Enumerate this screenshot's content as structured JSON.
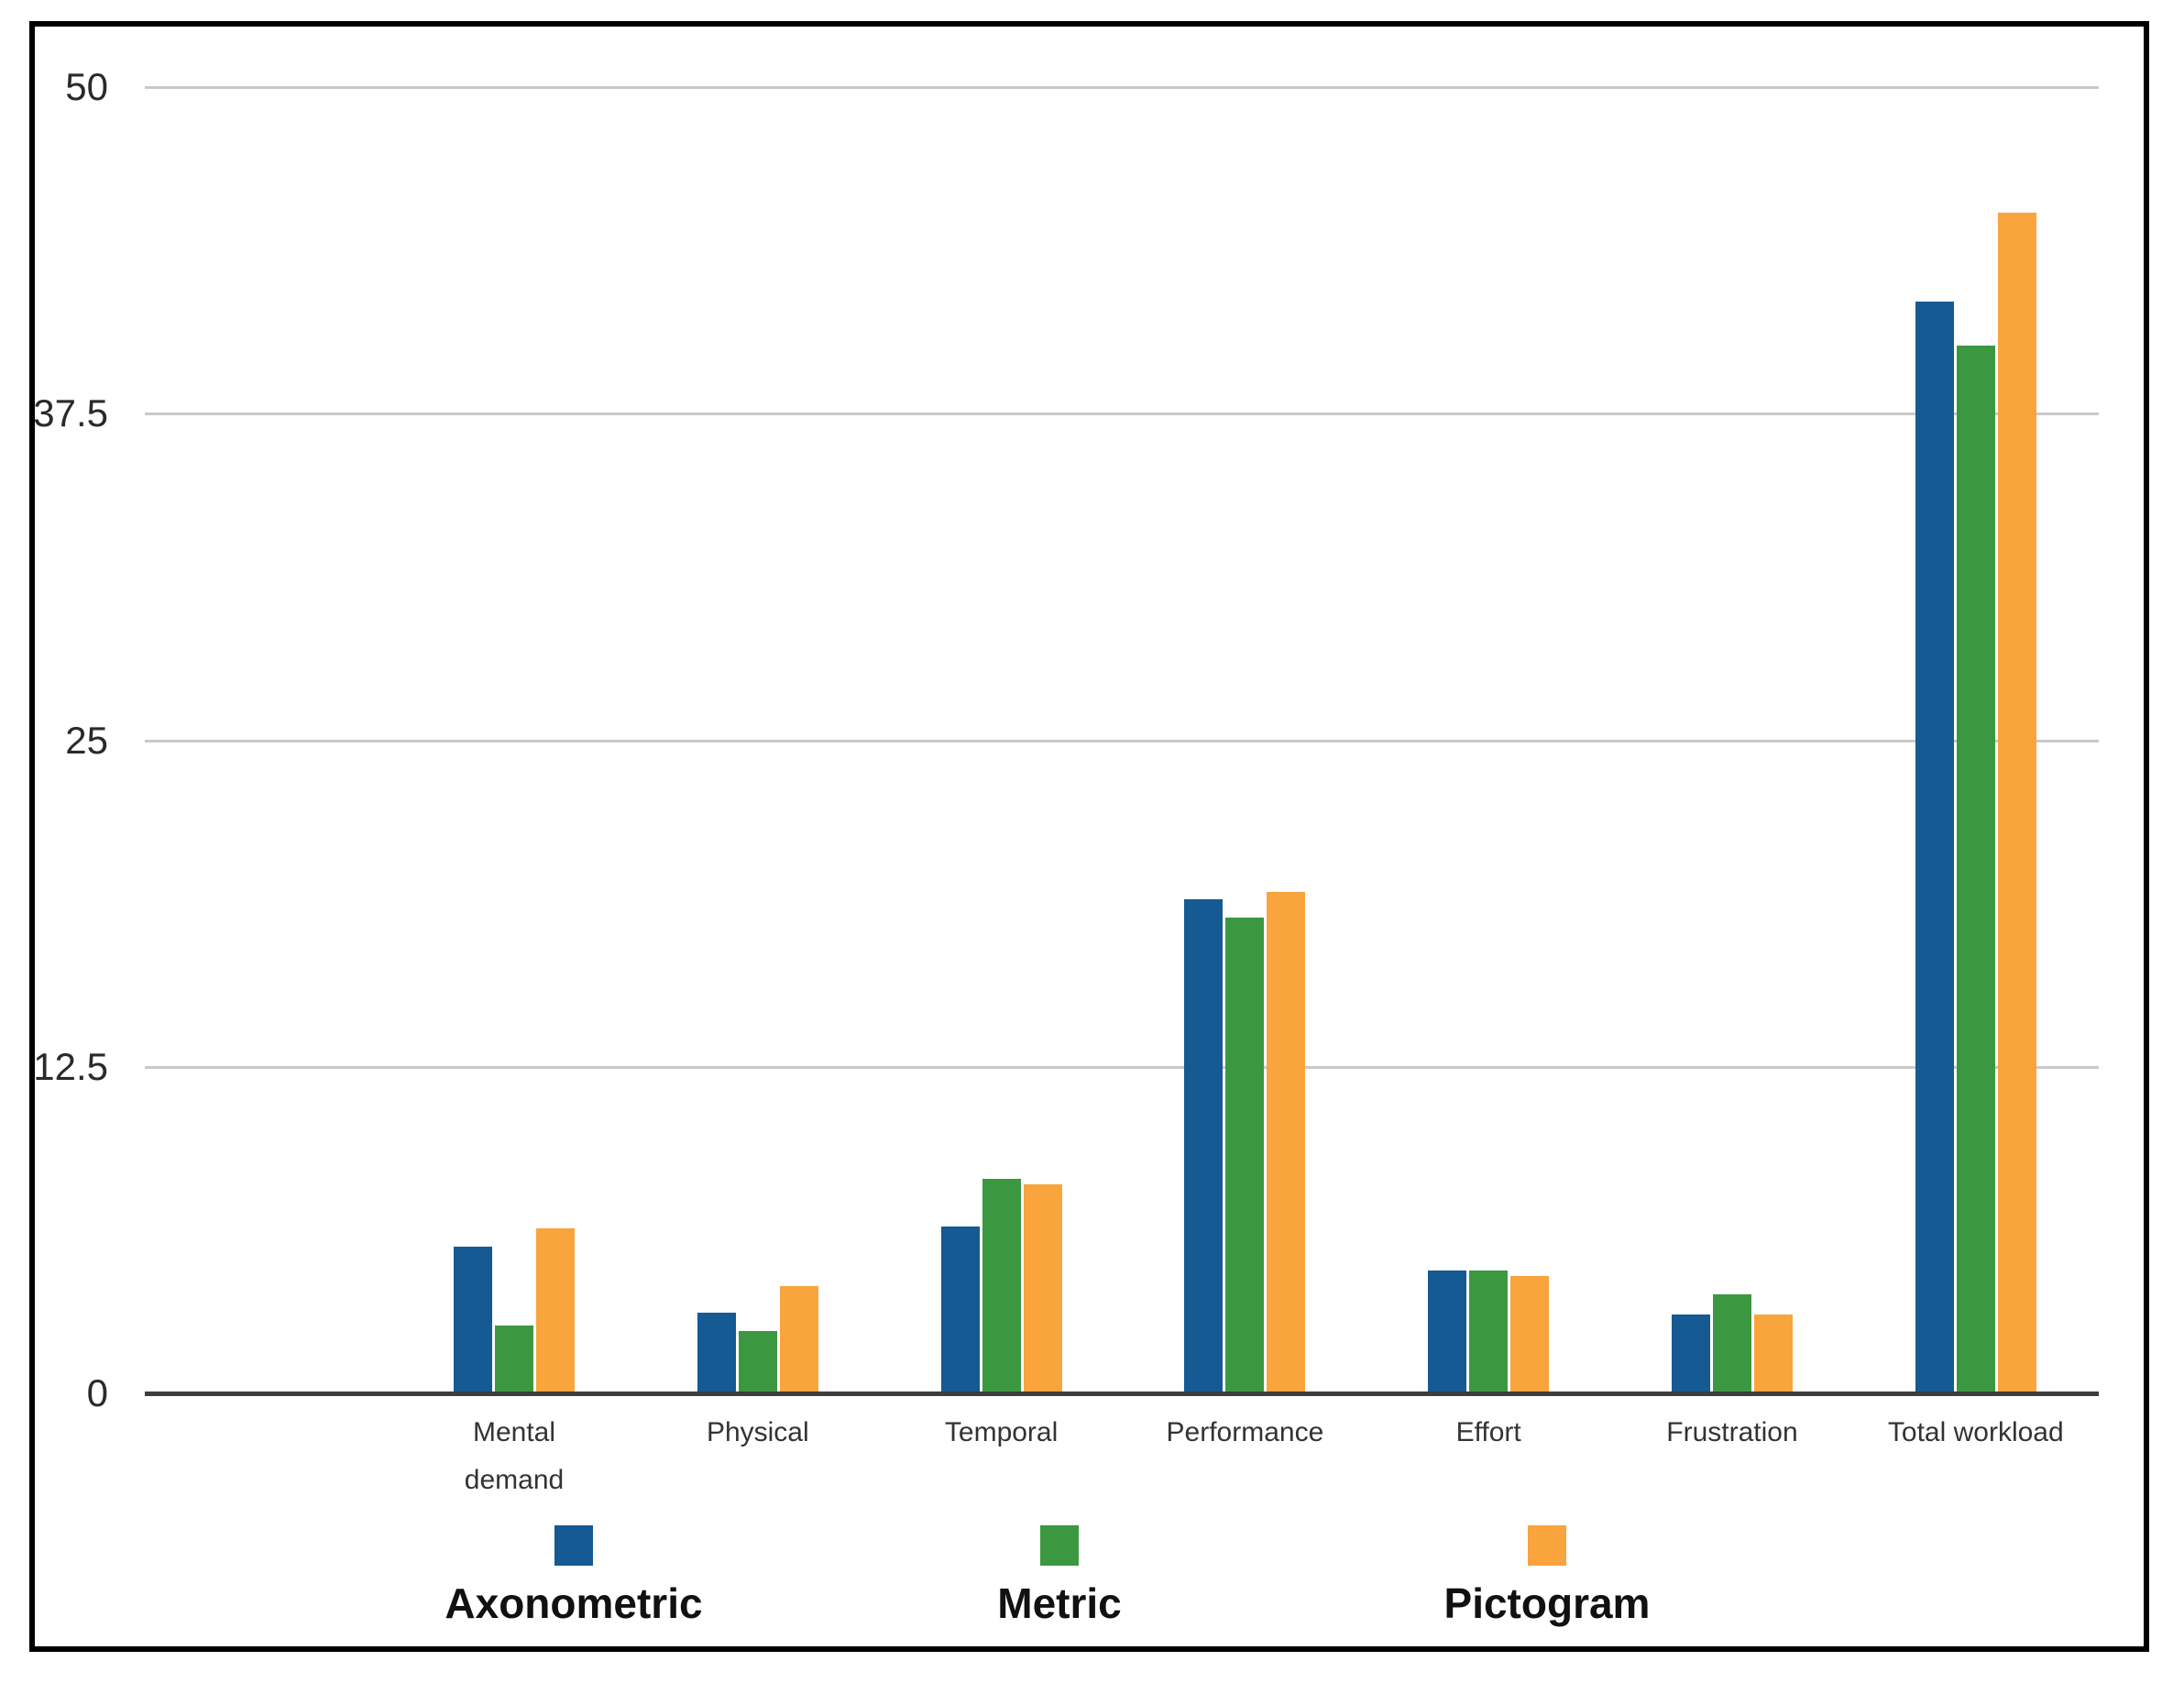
{
  "chart_data": {
    "type": "bar",
    "title": "",
    "categories": [
      "Mental demand",
      "Physical",
      "Temporal",
      "Performance",
      "Effort",
      "Frustration",
      "Total workload"
    ],
    "category_display": [
      "Mental\ndemand",
      "Physical",
      "Temporal",
      "Performance",
      "Effort",
      "Frustration",
      "Total workload"
    ],
    "series": [
      {
        "name": "Axonometric",
        "color": "#155A93",
        "values": [
          5.6,
          3.1,
          6.4,
          18.9,
          4.7,
          3.0,
          41.8
        ]
      },
      {
        "name": "Metric",
        "color": "#3B9840",
        "values": [
          2.6,
          2.4,
          8.2,
          18.2,
          4.7,
          3.8,
          40.1
        ]
      },
      {
        "name": "Pictogram",
        "color": "#F9A43C",
        "values": [
          6.3,
          4.1,
          8.0,
          19.2,
          4.5,
          3.0,
          45.2
        ]
      }
    ],
    "xlabel": "",
    "ylabel": "",
    "ylim": [
      0,
      50
    ],
    "yticks": [
      0,
      12.5,
      25,
      37.5,
      50
    ],
    "ytick_labels": [
      "0",
      "12.5",
      "25",
      "37.5",
      "50"
    ],
    "grid": "horizontal",
    "legend_position": "bottom",
    "colors": {
      "grid": "#c9c9c9",
      "axis": "#3d3d3d",
      "frame_border": "#000000",
      "background": "#ffffff",
      "tick_text": "#2a2a2a",
      "category_text": "#333333",
      "legend_text": "#111111"
    }
  }
}
